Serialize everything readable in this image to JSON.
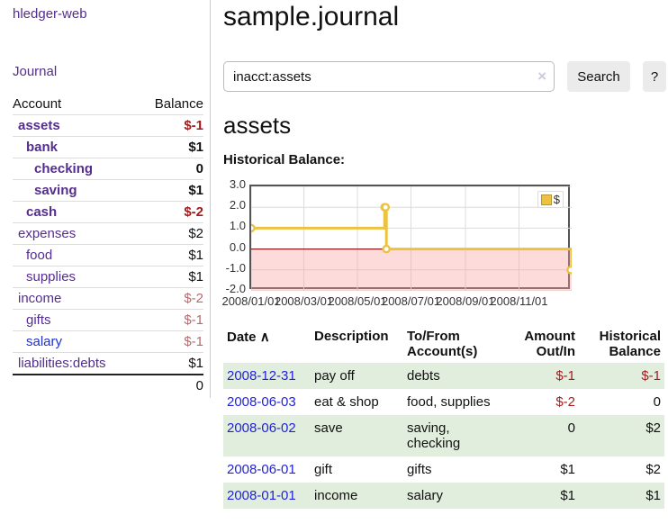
{
  "sidebar": {
    "brand": "hledger-web",
    "journal_link": "Journal",
    "accounts": {
      "header_account": "Account",
      "header_balance": "Balance",
      "rows": [
        {
          "account": "assets",
          "balance": "$-1",
          "depth": 1,
          "bold": true,
          "neg": "strong"
        },
        {
          "account": "bank",
          "balance": "$1",
          "depth": 2,
          "bold": true,
          "neg": "none"
        },
        {
          "account": "checking",
          "balance": "0",
          "depth": 3,
          "bold": true,
          "neg": "none"
        },
        {
          "account": "saving",
          "balance": "$1",
          "depth": 3,
          "bold": true,
          "neg": "none"
        },
        {
          "account": "cash",
          "balance": "$-2",
          "depth": 2,
          "bold": true,
          "neg": "strong"
        },
        {
          "account": "expenses",
          "balance": "$2",
          "depth": 1,
          "bold": false,
          "neg": "none"
        },
        {
          "account": "food",
          "balance": "$1",
          "depth": 2,
          "bold": false,
          "neg": "none"
        },
        {
          "account": "supplies",
          "balance": "$1",
          "depth": 2,
          "bold": false,
          "neg": "none"
        },
        {
          "account": "income",
          "balance": "$-2",
          "depth": 1,
          "bold": false,
          "neg": "muted"
        },
        {
          "account": "gifts",
          "balance": "$-1",
          "depth": 2,
          "bold": false,
          "neg": "muted"
        },
        {
          "account": "salary",
          "balance": "$-1",
          "depth": 2,
          "bold": false,
          "neg": "muted",
          "blue": true
        },
        {
          "account": "liabilities:debts",
          "balance": "$1",
          "depth": 1,
          "bold": false,
          "neg": "none"
        }
      ],
      "total": "0"
    }
  },
  "header": {
    "title": "sample.journal"
  },
  "search": {
    "value": "inacct:assets",
    "clear_icon": "×",
    "search_button": "Search",
    "help_button": "?"
  },
  "main": {
    "account_title": "assets",
    "chart_heading": "Historical Balance:"
  },
  "chart_data": {
    "type": "line",
    "step": true,
    "title": "Historical Balance",
    "legend": "$",
    "series": [
      {
        "name": "$",
        "color": "#edc240",
        "points": [
          [
            "2008-01-01",
            1
          ],
          [
            "2008-06-01",
            2
          ],
          [
            "2008-06-02",
            2
          ],
          [
            "2008-06-03",
            0
          ],
          [
            "2008-12-31",
            -1
          ]
        ]
      }
    ],
    "xlim": [
      "2008-01-01",
      "2008-12-31"
    ],
    "ylim": [
      -2,
      3
    ],
    "x_ticks": [
      "2008/01/01",
      "2008/03/01",
      "2008/05/01",
      "2008/07/01",
      "2008/09/01",
      "2008/11/01"
    ],
    "y_ticks": [
      3.0,
      2.0,
      1.0,
      0.0,
      -1.0,
      -2.0
    ],
    "grid": true,
    "grid_color": "#dcdcdc",
    "zero_line_color": "#8b1a1a",
    "negative_region_color": "rgba(250,160,160,0.38)",
    "marker_fill": "#ffffff",
    "legend_position": "top-right"
  },
  "register": {
    "headers": {
      "date": "Date",
      "sort_icon": "∧",
      "description": "Description",
      "accounts": "To/From Account(s)",
      "amount": "Amount Out/In",
      "balance": "Historical Balance"
    },
    "rows": [
      {
        "date": "2008-12-31",
        "description": "pay off",
        "accounts": "debts",
        "amount": "$-1",
        "balance": "$-1",
        "amount_neg": true,
        "balance_neg": true,
        "stripe": true
      },
      {
        "date": "2008-06-03",
        "description": "eat & shop",
        "accounts": "food, supplies",
        "amount": "$-2",
        "balance": "0",
        "amount_neg": true,
        "balance_neg": false,
        "stripe": false
      },
      {
        "date": "2008-06-02",
        "description": "save",
        "accounts": "saving, checking",
        "amount": "0",
        "balance": "$2",
        "amount_neg": false,
        "balance_neg": false,
        "stripe": true
      },
      {
        "date": "2008-06-01",
        "description": "gift",
        "accounts": "gifts",
        "amount": "$1",
        "balance": "$2",
        "amount_neg": false,
        "balance_neg": false,
        "stripe": false
      },
      {
        "date": "2008-01-01",
        "description": "income",
        "accounts": "salary",
        "amount": "$1",
        "balance": "$1",
        "amount_neg": false,
        "balance_neg": false,
        "stripe": true
      }
    ]
  }
}
